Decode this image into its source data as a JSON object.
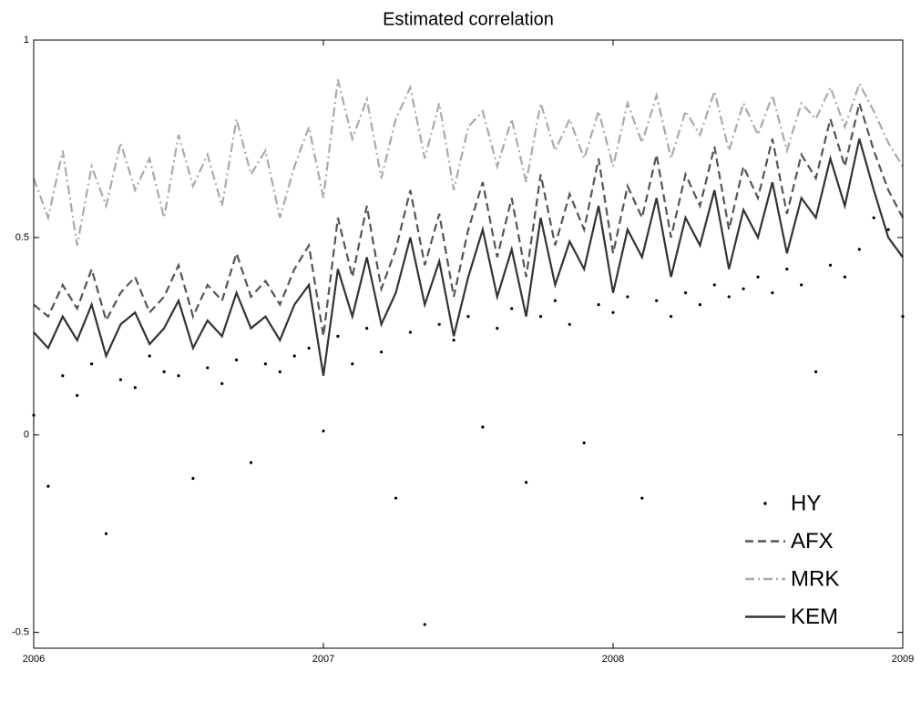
{
  "chart_data": {
    "type": "line",
    "title": "Estimated correlation",
    "x": [
      2006,
      2006.05,
      2006.1,
      2006.15,
      2006.2,
      2006.25,
      2006.3,
      2006.35,
      2006.4,
      2006.45,
      2006.5,
      2006.55,
      2006.6,
      2006.65,
      2006.7,
      2006.75,
      2006.8,
      2006.85,
      2006.9,
      2006.95,
      2007,
      2007.05,
      2007.1,
      2007.15,
      2007.2,
      2007.25,
      2007.3,
      2007.35,
      2007.4,
      2007.45,
      2007.5,
      2007.55,
      2007.6,
      2007.65,
      2007.7,
      2007.75,
      2007.8,
      2007.85,
      2007.9,
      2007.95,
      2008,
      2008.05,
      2008.1,
      2008.15,
      2008.2,
      2008.25,
      2008.3,
      2008.35,
      2008.4,
      2008.45,
      2008.5,
      2008.55,
      2008.6,
      2008.65,
      2008.7,
      2008.75,
      2008.8,
      2008.85,
      2008.9,
      2008.95,
      2009
    ],
    "series": [
      {
        "name": "HY",
        "color": "#000000",
        "style": "dots",
        "values": [
          0.05,
          -0.13,
          0.15,
          0.1,
          0.18,
          -0.25,
          0.14,
          0.12,
          0.2,
          0.16,
          0.15,
          -0.11,
          0.17,
          0.13,
          0.19,
          -0.07,
          0.18,
          0.16,
          0.2,
          0.22,
          0.01,
          0.25,
          0.18,
          0.27,
          0.21,
          -0.16,
          0.26,
          -0.48,
          0.28,
          0.24,
          0.3,
          0.02,
          0.27,
          0.32,
          -0.12,
          0.3,
          0.34,
          0.28,
          -0.02,
          0.33,
          0.31,
          0.35,
          -0.16,
          0.34,
          0.3,
          0.36,
          0.33,
          0.38,
          0.35,
          0.37,
          0.4,
          0.36,
          0.42,
          0.38,
          0.16,
          0.43,
          0.4,
          0.47,
          0.55,
          0.52,
          0.3
        ]
      },
      {
        "name": "AFX",
        "color": "#555555",
        "style": "dashed",
        "values": [
          0.33,
          0.3,
          0.38,
          0.32,
          0.42,
          0.29,
          0.36,
          0.4,
          0.31,
          0.35,
          0.43,
          0.3,
          0.38,
          0.34,
          0.46,
          0.35,
          0.39,
          0.33,
          0.42,
          0.48,
          0.25,
          0.55,
          0.4,
          0.58,
          0.37,
          0.47,
          0.62,
          0.43,
          0.56,
          0.35,
          0.52,
          0.64,
          0.45,
          0.6,
          0.4,
          0.66,
          0.48,
          0.61,
          0.52,
          0.7,
          0.46,
          0.63,
          0.55,
          0.71,
          0.5,
          0.66,
          0.58,
          0.73,
          0.52,
          0.68,
          0.6,
          0.75,
          0.56,
          0.71,
          0.65,
          0.8,
          0.68,
          0.84,
          0.72,
          0.62,
          0.55
        ]
      },
      {
        "name": "MRK",
        "color": "#aaaaaa",
        "style": "dashdot",
        "values": [
          0.65,
          0.55,
          0.72,
          0.48,
          0.68,
          0.58,
          0.74,
          0.62,
          0.7,
          0.55,
          0.76,
          0.63,
          0.71,
          0.58,
          0.8,
          0.66,
          0.72,
          0.55,
          0.68,
          0.78,
          0.6,
          0.9,
          0.75,
          0.85,
          0.65,
          0.8,
          0.88,
          0.7,
          0.84,
          0.62,
          0.78,
          0.82,
          0.68,
          0.8,
          0.64,
          0.84,
          0.72,
          0.8,
          0.7,
          0.82,
          0.68,
          0.84,
          0.74,
          0.86,
          0.7,
          0.82,
          0.76,
          0.87,
          0.72,
          0.84,
          0.76,
          0.86,
          0.72,
          0.84,
          0.8,
          0.88,
          0.78,
          0.89,
          0.82,
          0.74,
          0.68
        ]
      },
      {
        "name": "KEM",
        "color": "#333333",
        "style": "solid",
        "values": [
          0.26,
          0.22,
          0.3,
          0.24,
          0.33,
          0.2,
          0.28,
          0.31,
          0.23,
          0.27,
          0.34,
          0.22,
          0.29,
          0.25,
          0.36,
          0.27,
          0.3,
          0.24,
          0.33,
          0.38,
          0.15,
          0.42,
          0.3,
          0.45,
          0.28,
          0.36,
          0.5,
          0.33,
          0.44,
          0.25,
          0.4,
          0.52,
          0.35,
          0.47,
          0.3,
          0.55,
          0.38,
          0.49,
          0.42,
          0.58,
          0.36,
          0.52,
          0.45,
          0.6,
          0.4,
          0.55,
          0.48,
          0.62,
          0.42,
          0.57,
          0.5,
          0.64,
          0.46,
          0.6,
          0.55,
          0.7,
          0.58,
          0.75,
          0.62,
          0.5,
          0.45
        ]
      }
    ],
    "xlim": [
      2006,
      2009
    ],
    "xticks": [
      2006,
      2007,
      2008,
      2009
    ],
    "ylim": [
      -0.54,
      1
    ],
    "yticks": [
      -0.5,
      0,
      0.5,
      1
    ],
    "grid": false,
    "legend": "lower-right"
  }
}
